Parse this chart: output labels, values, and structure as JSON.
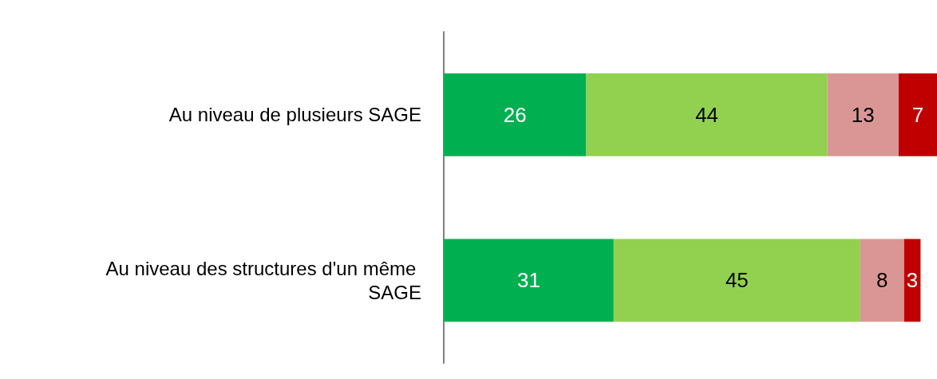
{
  "chart_data": {
    "type": "bar",
    "orientation": "horizontal",
    "stacked": true,
    "data_labels": true,
    "categories": [
      "Au niveau de plusieurs SAGE",
      "Au niveau des structures d'un même SAGE"
    ],
    "series": [
      {
        "color": "#00b050",
        "values": [
          26,
          31
        ]
      },
      {
        "color": "#92d050",
        "values": [
          44,
          45
        ]
      },
      {
        "color": "#da9694",
        "values": [
          13,
          8
        ]
      },
      {
        "color": "#c00000",
        "values": [
          7,
          3
        ]
      }
    ],
    "grid": false
  }
}
